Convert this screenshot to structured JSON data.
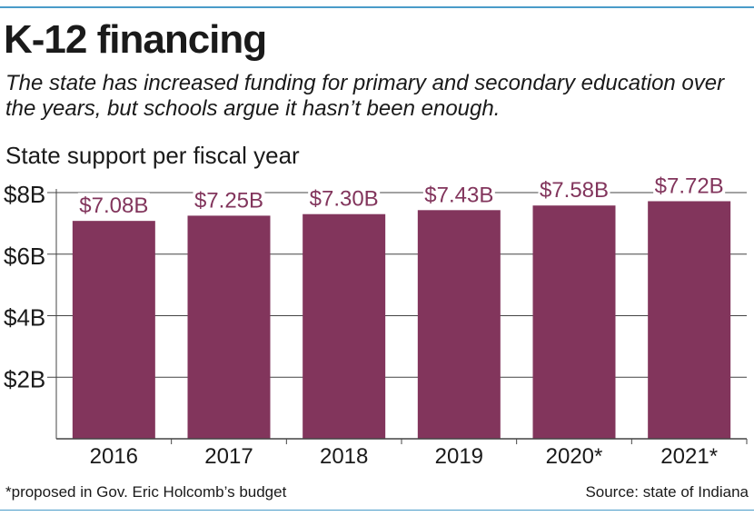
{
  "header": {
    "title": "K-12 financing",
    "subtitle": "The state has increased funding for primary and secondary education over the years, but schools argue it hasn’t been enough.",
    "chart_label": "State support per fiscal year"
  },
  "footer": {
    "footnote": "*proposed in Gov. Eric Holcomb’s budget",
    "source": "Source: state of Indiana"
  },
  "colors": {
    "bar": "#82355c",
    "value_label": "#82355c",
    "gridline": "#444444",
    "accent_rule": "#4a9cc9"
  },
  "chart_data": {
    "type": "bar",
    "categories": [
      "2016",
      "2017",
      "2018",
      "2019",
      "2020*",
      "2021*"
    ],
    "values": [
      7.08,
      7.25,
      7.3,
      7.43,
      7.58,
      7.72
    ],
    "value_labels": [
      "$7.08B",
      "$7.25B",
      "$7.30B",
      "$7.43B",
      "$7.58B",
      "$7.72B"
    ],
    "ylim": [
      0,
      8
    ],
    "yticks": [
      2,
      4,
      6,
      8
    ],
    "ytick_labels": [
      "$2B",
      "$4B",
      "$6B",
      "$8B"
    ],
    "grid": true
  }
}
